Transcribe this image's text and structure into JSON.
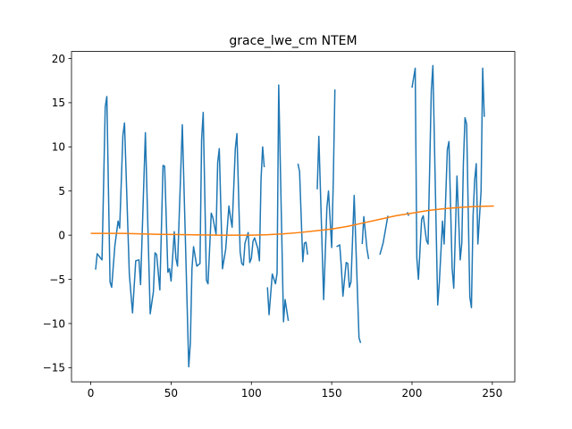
{
  "chart_data": {
    "type": "line",
    "title": "grace_lwe_cm NTEM",
    "xlabel": "",
    "ylabel": "",
    "xlim": [
      -12,
      264
    ],
    "ylim": [
      -16.6,
      20.8
    ],
    "xticks": [
      0,
      50,
      100,
      150,
      200,
      250
    ],
    "yticks": [
      -15,
      -10,
      -5,
      0,
      5,
      10,
      15,
      20
    ],
    "grid": false,
    "series": [
      {
        "color": "#1f77b4",
        "segments": [
          [
            [
              3,
              -3.9
            ],
            [
              4,
              -2.1
            ],
            [
              7,
              -2.8
            ],
            [
              9,
              14.5
            ],
            [
              10,
              15.7
            ],
            [
              12,
              -5.3
            ],
            [
              13,
              -5.9
            ],
            [
              15,
              -1.2
            ],
            [
              17,
              1.6
            ],
            [
              18,
              0.8
            ],
            [
              20,
              11.3
            ],
            [
              21,
              12.7
            ],
            [
              24,
              -4.4
            ],
            [
              26,
              -8.8
            ],
            [
              28,
              -2.9
            ],
            [
              30,
              -2.8
            ],
            [
              31,
              -5.6
            ],
            [
              34,
              11.6
            ],
            [
              37,
              -8.9
            ],
            [
              39,
              -6.4
            ],
            [
              40,
              -2.0
            ],
            [
              41,
              -2.2
            ],
            [
              43,
              -6.2
            ],
            [
              45,
              7.9
            ],
            [
              46,
              7.8
            ],
            [
              48,
              -4.2
            ],
            [
              49,
              -3.8
            ],
            [
              50,
              -5.2
            ],
            [
              52,
              0.4
            ],
            [
              53,
              -2.6
            ],
            [
              54,
              -3.5
            ],
            [
              57,
              12.5
            ],
            [
              59,
              -1.1
            ],
            [
              61,
              -14.9
            ],
            [
              62,
              -12.2
            ],
            [
              63,
              -3.8
            ],
            [
              64,
              -1.3
            ],
            [
              66,
              -3.5
            ],
            [
              68,
              -3.2
            ],
            [
              69,
              10.8
            ],
            [
              70,
              13.9
            ],
            [
              72,
              -5.1
            ],
            [
              73,
              -5.5
            ],
            [
              75,
              2.5
            ],
            [
              76,
              2.0
            ],
            [
              78,
              0.1
            ],
            [
              79,
              8.2
            ],
            [
              80,
              9.8
            ],
            [
              82,
              -3.8
            ],
            [
              84,
              -1.6
            ],
            [
              86,
              3.3
            ],
            [
              87,
              2.0
            ],
            [
              88,
              0.9
            ],
            [
              90,
              9.8
            ],
            [
              91,
              11.5
            ],
            [
              93,
              -1.9
            ],
            [
              94,
              -3.2
            ],
            [
              95,
              -3.4
            ],
            [
              96,
              -0.9
            ],
            [
              98,
              0.3
            ],
            [
              99,
              -3.1
            ],
            [
              100,
              -2.6
            ],
            [
              101,
              -0.7
            ],
            [
              102,
              -0.3
            ],
            [
              104,
              -1.5
            ],
            [
              105,
              -2.9
            ],
            [
              106,
              6.3
            ],
            [
              107,
              10.0
            ],
            [
              108,
              7.7
            ]
          ],
          [
            [
              110,
              -5.9
            ],
            [
              111,
              -9.0
            ],
            [
              113,
              -4.4
            ],
            [
              115,
              -5.5
            ],
            [
              116,
              -4.3
            ],
            [
              117,
              17.0
            ],
            [
              120,
              -9.8
            ],
            [
              121,
              -7.3
            ],
            [
              123,
              -9.7
            ]
          ],
          [
            [
              129,
              8.1
            ],
            [
              130,
              7.2
            ],
            [
              132,
              -3.0
            ],
            [
              133,
              -0.9
            ],
            [
              134,
              -0.8
            ],
            [
              135,
              -2.2
            ]
          ],
          [
            [
              141,
              5.2
            ],
            [
              142,
              11.2
            ],
            [
              143,
              5.0
            ],
            [
              145,
              -7.3
            ],
            [
              147,
              3.1
            ],
            [
              148,
              5.0
            ],
            [
              150,
              -1.4
            ],
            [
              151,
              6.2
            ],
            [
              152,
              16.5
            ]
          ],
          [
            [
              153,
              -1.3
            ],
            [
              155,
              -1.1
            ],
            [
              156,
              -3.6
            ],
            [
              157,
              -6.9
            ],
            [
              159,
              -3.1
            ],
            [
              160,
              -3.2
            ],
            [
              161,
              -5.9
            ],
            [
              162,
              -5.3
            ],
            [
              164,
              4.5
            ],
            [
              167,
              -11.6
            ],
            [
              168,
              -12.2
            ]
          ],
          [
            [
              169,
              -1.0
            ],
            [
              170,
              2.1
            ],
            [
              172,
              -1.6
            ],
            [
              173,
              -2.7
            ]
          ],
          [
            [
              180,
              -2.2
            ],
            [
              182,
              -0.9
            ],
            [
              185,
              2.2
            ]
          ],
          [
            [
              197,
              2.6
            ],
            [
              198,
              2.2
            ]
          ],
          [
            [
              200,
              16.7
            ],
            [
              202,
              18.9
            ],
            [
              203,
              -2.6
            ],
            [
              204,
              -5.0
            ],
            [
              206,
              1.8
            ],
            [
              207,
              2.2
            ],
            [
              209,
              -0.6
            ],
            [
              210,
              -1.0
            ],
            [
              212,
              16.3
            ],
            [
              213,
              19.2
            ],
            [
              216,
              -7.9
            ],
            [
              217,
              -5.4
            ],
            [
              219,
              1.6
            ],
            [
              220,
              -1.0
            ],
            [
              222,
              9.7
            ],
            [
              223,
              10.6
            ],
            [
              225,
              -3.8
            ],
            [
              226,
              -6.0
            ],
            [
              228,
              6.7
            ],
            [
              229,
              2.0
            ],
            [
              230,
              -2.8
            ],
            [
              231,
              -0.9
            ],
            [
              232,
              8.2
            ],
            [
              233,
              13.3
            ],
            [
              234,
              12.6
            ],
            [
              236,
              -7.0
            ],
            [
              237,
              -8.2
            ],
            [
              238,
              2.1
            ],
            [
              239,
              6.2
            ],
            [
              240,
              8.1
            ],
            [
              241,
              -1.0
            ],
            [
              243,
              5.0
            ],
            [
              244,
              18.9
            ],
            [
              245,
              13.4
            ]
          ]
        ]
      },
      {
        "color": "#ff7f0e",
        "segments": [
          [
            [
              0,
              0.2
            ],
            [
              20,
              0.2
            ],
            [
              40,
              0.1
            ],
            [
              60,
              0.05
            ],
            [
              80,
              0.0
            ],
            [
              100,
              0.0
            ],
            [
              110,
              0.05
            ],
            [
              120,
              0.15
            ],
            [
              130,
              0.3
            ],
            [
              140,
              0.5
            ],
            [
              150,
              0.7
            ],
            [
              160,
              1.0
            ],
            [
              170,
              1.4
            ],
            [
              180,
              1.8
            ],
            [
              190,
              2.2
            ],
            [
              200,
              2.5
            ],
            [
              210,
              2.8
            ],
            [
              220,
              3.0
            ],
            [
              230,
              3.15
            ],
            [
              240,
              3.25
            ],
            [
              251,
              3.3
            ]
          ]
        ]
      }
    ]
  }
}
